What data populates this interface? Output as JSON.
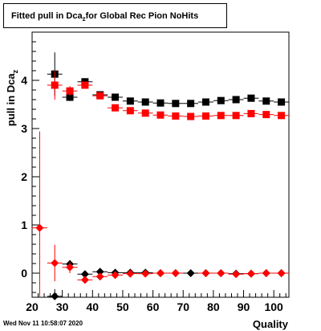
{
  "title": {
    "main": "Fitted pull in Dca",
    "subscript": "z",
    "rest": " for Global Rec Pion NoHits"
  },
  "footer": {
    "date": "Wed Nov 11 10:58:07 2020"
  },
  "chart_data": {
    "type": "scatter",
    "title": "Fitted pull in Dca_z for Global Rec Pion NoHits",
    "xlabel": "Quality",
    "ylabel": "pull in Dca_z",
    "xlim": [
      20,
      105
    ],
    "ylim": [
      -0.5,
      5.0
    ],
    "x_ticks": [
      20,
      30,
      40,
      50,
      60,
      70,
      80,
      90,
      100
    ],
    "y_ticks": [
      0,
      1,
      2,
      3,
      4
    ],
    "grid": false,
    "series": [
      {
        "color": "#000000",
        "marker": "square",
        "x": [
          27.5,
          32.5,
          37.5,
          42.5,
          47.5,
          52.5,
          57.5,
          62.5,
          67.5,
          72.5,
          77.5,
          82.5,
          87.5,
          92.5,
          97.5,
          102.5
        ],
        "y": [
          4.13,
          3.65,
          3.97,
          3.7,
          3.65,
          3.57,
          3.55,
          3.53,
          3.52,
          3.52,
          3.55,
          3.58,
          3.6,
          3.63,
          3.57,
          3.55
        ],
        "err": [
          0.45,
          0.08,
          0.05,
          0.03,
          0.02,
          0.02,
          0.02,
          0.02,
          0.02,
          0.02,
          0.02,
          0.02,
          0.02,
          0.02,
          0.02,
          0.02
        ]
      },
      {
        "color": "#ff0000",
        "marker": "square",
        "x": [
          27.5,
          32.5,
          37.5,
          42.5,
          47.5,
          52.5,
          57.5,
          62.5,
          67.5,
          72.5,
          77.5,
          82.5,
          87.5,
          92.5,
          97.5,
          102.5
        ],
        "y": [
          3.9,
          3.78,
          3.9,
          3.68,
          3.43,
          3.37,
          3.32,
          3.28,
          3.26,
          3.25,
          3.26,
          3.27,
          3.27,
          3.31,
          3.29,
          3.27
        ],
        "err": [
          0.3,
          0.1,
          0.07,
          0.04,
          0.03,
          0.02,
          0.02,
          0.02,
          0.02,
          0.02,
          0.02,
          0.02,
          0.02,
          0.02,
          0.02,
          0.02
        ]
      },
      {
        "color": "#000000",
        "marker": "diamond",
        "x": [
          27.5,
          32.5,
          37.5,
          42.5,
          47.5,
          52.5,
          57.5,
          62.5,
          67.5,
          72.5,
          77.5,
          82.5,
          87.5,
          92.5,
          97.5,
          102.5
        ],
        "y": [
          -0.48,
          0.19,
          -0.02,
          0.03,
          0.01,
          0.01,
          0.01,
          0.0,
          0.0,
          0.0,
          0.0,
          0.0,
          -0.01,
          -0.01,
          0.0,
          0.0
        ],
        "err": [
          0.15,
          0.08,
          0.04,
          0.02,
          0.02,
          0.01,
          0.01,
          0.01,
          0.01,
          0.01,
          0.01,
          0.01,
          0.01,
          0.01,
          0.01,
          0.01
        ]
      },
      {
        "color": "#ff0000",
        "marker": "diamond",
        "x": [
          22.5,
          27.5,
          32.5,
          37.5,
          42.5,
          47.5,
          52.5,
          57.5,
          62.5,
          67.5,
          77.5,
          82.5,
          87.5,
          92.5,
          97.5,
          102.5
        ],
        "y": [
          0.94,
          0.21,
          0.12,
          -0.14,
          -0.07,
          -0.04,
          -0.01,
          -0.01,
          0.0,
          0.0,
          0.0,
          0.0,
          -0.02,
          -0.01,
          0.0,
          0.0
        ],
        "err": [
          2.0,
          0.38,
          0.12,
          0.06,
          0.03,
          0.02,
          0.02,
          0.01,
          0.01,
          0.01,
          0.01,
          0.01,
          0.01,
          0.01,
          0.01,
          0.01
        ]
      }
    ]
  }
}
